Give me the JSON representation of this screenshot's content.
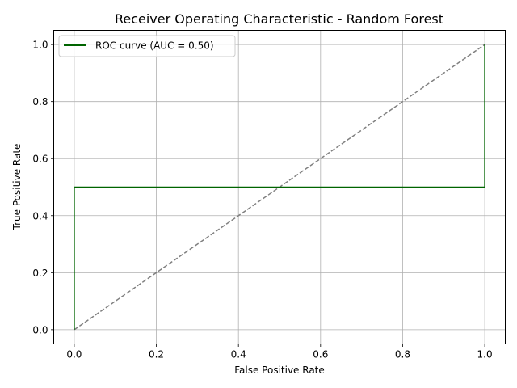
{
  "chart_data": {
    "type": "line",
    "title": "Receiver Operating Characteristic - Random Forest",
    "xlabel": "False Positive Rate",
    "ylabel": "True Positive Rate",
    "xlim": [
      -0.05,
      1.05
    ],
    "ylim": [
      -0.05,
      1.05
    ],
    "xticks": [
      "0.0",
      "0.2",
      "0.4",
      "0.6",
      "0.8",
      "1.0"
    ],
    "yticks": [
      "0.0",
      "0.2",
      "0.4",
      "0.6",
      "0.8",
      "1.0"
    ],
    "grid": true,
    "legend": {
      "position": "top-left"
    },
    "series": [
      {
        "name": "ROC curve (AUC = 0.50)",
        "color": "#006400",
        "x": [
          0.0,
          0.0,
          1.0,
          1.0
        ],
        "y": [
          0.0,
          0.5,
          0.5,
          1.0
        ]
      }
    ],
    "reference_line": {
      "color": "#808080",
      "dash": true,
      "x": [
        0.0,
        1.0
      ],
      "y": [
        0.0,
        1.0
      ]
    }
  }
}
